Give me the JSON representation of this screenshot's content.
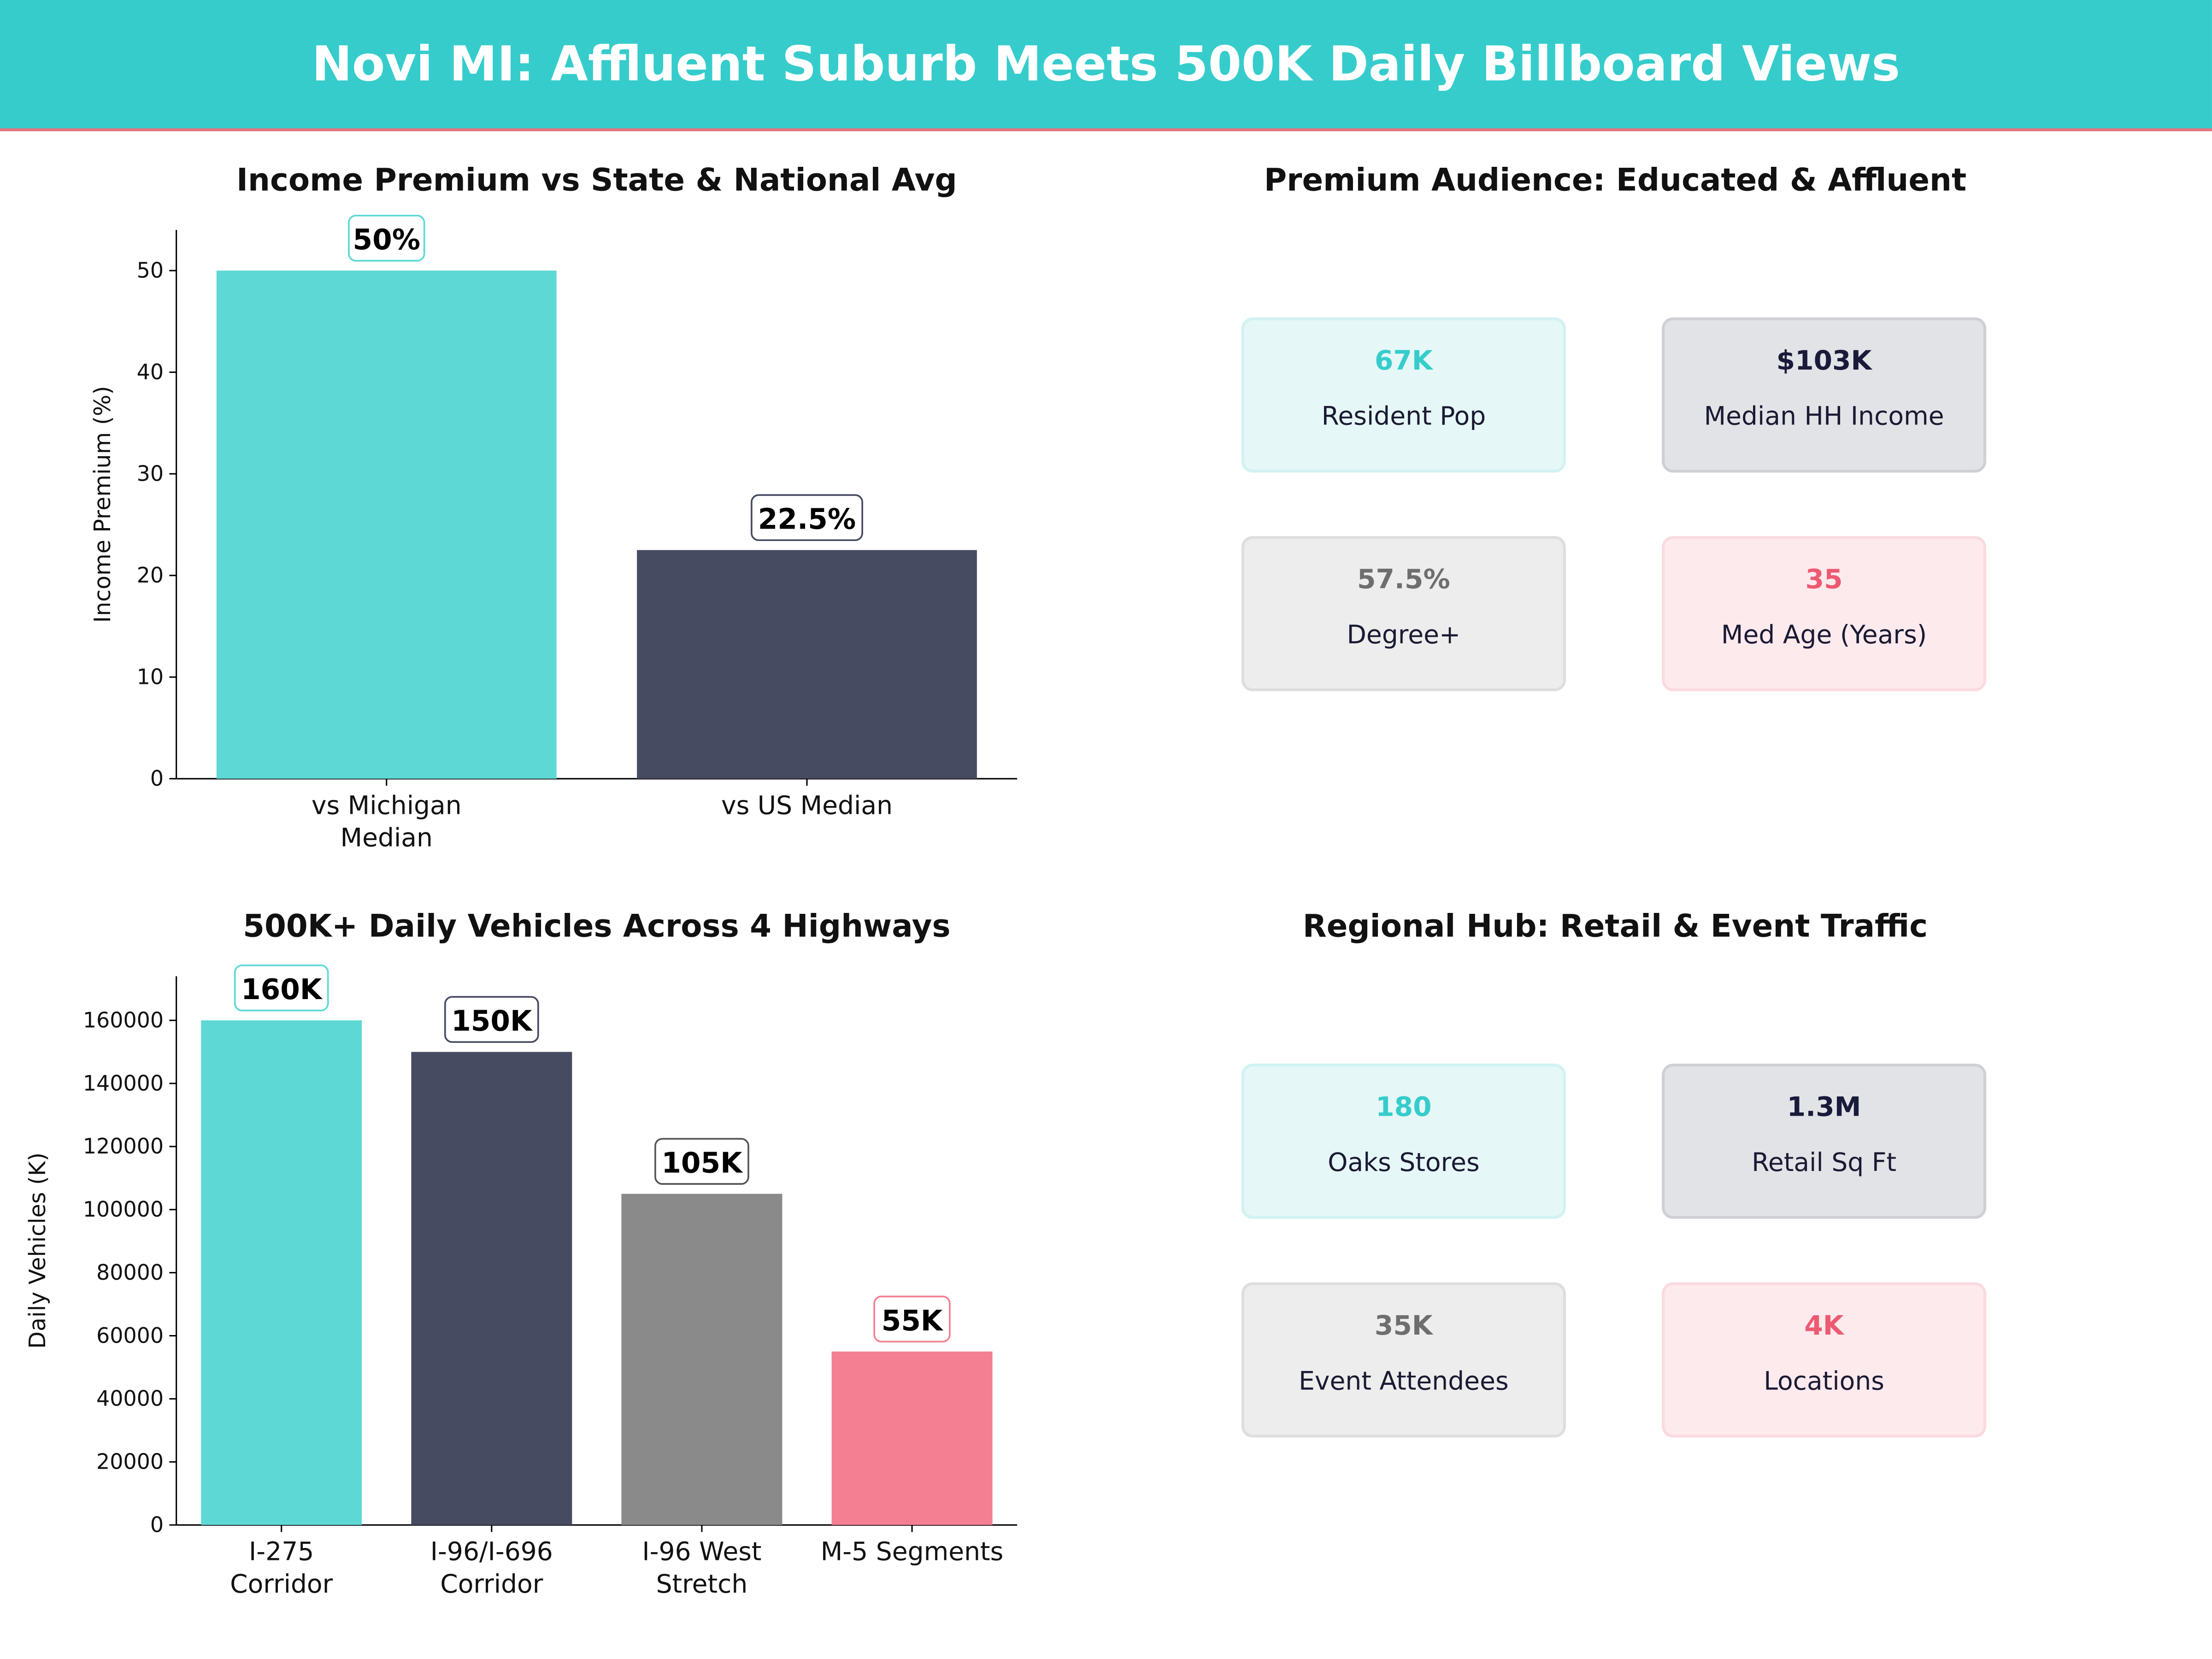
{
  "title": "Novi MI: Affluent Suburb Meets 500K Daily Billboard Views",
  "colors": {
    "header": "#36CCCC",
    "teal": "#5DD8D4",
    "navy": "#474B61",
    "gray": "#8A8A8A",
    "pink": "#F47F92"
  },
  "chart_data": [
    {
      "type": "bar",
      "title": "Income Premium vs State & National Avg",
      "categories": [
        "vs Michigan\nMedian",
        "vs US Median"
      ],
      "values": [
        50,
        22.5
      ],
      "data_labels": [
        "50%",
        "22.5%"
      ],
      "bar_colors": [
        "#5DD8D4",
        "#474B61"
      ],
      "xlabel": "",
      "ylabel": "Income Premium (%)",
      "ylim": [
        0,
        54
      ],
      "yticks": [
        0,
        10,
        20,
        30,
        40,
        50
      ],
      "grid": false
    },
    {
      "type": "bar",
      "title": "500K+ Daily Vehicles Across 4 Highways",
      "categories": [
        "I-275\nCorridor",
        "I-96/I-696\nCorridor",
        "I-96 West\nStretch",
        "M-5 Segments"
      ],
      "values": [
        160000,
        150000,
        105000,
        55000
      ],
      "data_labels": [
        "160K",
        "150K",
        "105K",
        "55K"
      ],
      "bar_colors": [
        "#5DD8D4",
        "#474B61",
        "#8A8A8A",
        "#F47F92"
      ],
      "xlabel": "",
      "ylabel": "Daily Vehicles (K)",
      "ylim": [
        0,
        174000
      ],
      "yticks": [
        0,
        20000,
        40000,
        60000,
        80000,
        100000,
        120000,
        140000,
        160000
      ],
      "grid": false
    }
  ],
  "audience": {
    "title": "Premium Audience: Educated & Affluent",
    "cards": [
      {
        "value": "67K",
        "label": "Resident Pop",
        "color": "#36CCCC",
        "bg": "#E5F7F7",
        "border": "#D2F2F2"
      },
      {
        "value": "$103K",
        "label": "Median HH Income",
        "color": "#1A1A3A",
        "bg": "#E2E3E7",
        "border": "#CFD0D6"
      },
      {
        "value": "57.5%",
        "label": "Degree+",
        "color": "#6E6E6E",
        "bg": "#EDEDED",
        "border": "#DEDEDE"
      },
      {
        "value": "35",
        "label": "Med Age (Years)",
        "color": "#EE5A72",
        "bg": "#FDEAED",
        "border": "#FADAE0"
      }
    ]
  },
  "hub": {
    "title": "Regional Hub: Retail & Event Traffic",
    "cards": [
      {
        "value": "180",
        "label": "Oaks Stores",
        "color": "#36CCCC",
        "bg": "#E5F7F7",
        "border": "#D2F2F2"
      },
      {
        "value": "1.3M",
        "label": "Retail Sq Ft",
        "color": "#1A1A3A",
        "bg": "#E2E3E7",
        "border": "#CFD0D6"
      },
      {
        "value": "35K",
        "label": "Event Attendees",
        "color": "#6E6E6E",
        "bg": "#EDEDED",
        "border": "#DEDEDE"
      },
      {
        "value": "4K",
        "label": "Locations",
        "color": "#EE5A72",
        "bg": "#FDEAED",
        "border": "#FADAE0"
      }
    ]
  }
}
